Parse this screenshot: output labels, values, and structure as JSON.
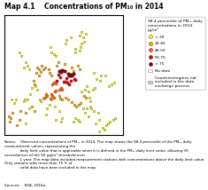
{
  "chart_data": {
    "type": "scatter",
    "title": "Map 4.1    Concentrations of PM₁₀ in 2014",
    "xlim": [
      -11,
      44
    ],
    "ylim": [
      34,
      66
    ],
    "tick_labels": false,
    "legend": "upper right",
    "legend_title": "98.4 percentile of PM₁₀ daily\nconcentrations in 2014",
    "legend_subtitle": "μg/m³",
    "series": [
      {
        "name": "< 20",
        "color": "#f5f500",
        "size": 2.5,
        "x": [
          0.0,
          -1.0,
          -2.0,
          -3.0,
          -4.0,
          0.5,
          10.5,
          11.0,
          12.0,
          13.0,
          18.0,
          17.5,
          20.0,
          24.0,
          25.0,
          25.5,
          27.0,
          22.0,
          24.5,
          25.0,
          22.0,
          24.0,
          26.0,
          28.5,
          29.0,
          30.0,
          31.0,
          28.0,
          27.5,
          25.0,
          26.5,
          30.5,
          32.0,
          33.5,
          34.0,
          36.0,
          37.5,
          39.0,
          40.0,
          33.0,
          34.5,
          35.5,
          36.5,
          37.0,
          38.0,
          39.5,
          40.5,
          27.5,
          29.0,
          30.5,
          32.5,
          31.5,
          33.0,
          29.5,
          28.0,
          26.5,
          25.5,
          23.0,
          21.0,
          22.0,
          24.0,
          5.5,
          6.0,
          7.0,
          8.0,
          4.5,
          3.5,
          2.0,
          1.0,
          0.0,
          -1.5,
          -2.0,
          -1.0,
          0.5,
          -5.5,
          -6.5,
          -7.5,
          14.5,
          15.5,
          16.0,
          13.0,
          12.5,
          11.0,
          10.0,
          9.0,
          8.5
        ],
        "y": [
          52.5,
          53.5,
          52.0,
          55.0,
          56.0,
          51.5,
          57.5,
          56.0,
          55.5,
          55.0,
          59.5,
          58.5,
          60.0,
          60.5,
          61.5,
          60.0,
          61.0,
          57.0,
          57.5,
          58.5,
          56.0,
          56.5,
          59.0,
          44.0,
          43.0,
          46.0,
          46.5,
          45.5,
          47.0,
          45.5,
          46.0,
          50.5,
          49.0,
          48.5,
          50.0,
          50.0,
          47.0,
          47.5,
          48.0,
          35.0,
          36.0,
          35.5,
          36.5,
          37.0,
          37.5,
          38.0,
          38.5,
          41.0,
          41.5,
          40.5,
          40.0,
          37.0,
          38.0,
          41.0,
          39.0,
          40.0,
          41.0,
          38.0,
          37.5,
          38.5,
          37.5,
          43.5,
          43.0,
          43.8,
          44.0,
          46.0,
          47.0,
          46.5,
          45.0,
          43.5,
          43.5,
          43.0,
          37.0,
          41.0,
          43.5,
          42.5,
          43.5,
          40.5,
          37.5,
          38.5,
          38.0,
          41.5,
          43.5,
          42.0,
          41.0,
          39.5
        ]
      },
      {
        "name": "20-40",
        "color": "#ffa500",
        "size": 3,
        "x": [
          2.5,
          3.0,
          4.0,
          5.0,
          6.0,
          5.0,
          4.5,
          6.5,
          7.0,
          8.0,
          9.5,
          10.0,
          11.0,
          13.5,
          14.0,
          17.0,
          20.5,
          21.0,
          23.0,
          24.0,
          26.0,
          27.0,
          23.5,
          24.5,
          22.5,
          21.5,
          20.5,
          18.5,
          17.5,
          16.0,
          14.5,
          15.0,
          2.0,
          3.0,
          -1.0,
          -3.5,
          -5.0,
          -8.0,
          -8.5,
          -9.0,
          -7.0,
          -4.0
        ],
        "y": [
          48.5,
          47.5,
          50.5,
          50.0,
          50.8,
          51.5,
          52.0,
          52.5,
          51.5,
          52.0,
          51.5,
          50.5,
          50.0,
          52.5,
          53.5,
          53.0,
          52.0,
          51.0,
          52.5,
          51.5,
          44.5,
          44.0,
          42.0,
          42.5,
          41.5,
          42.0,
          42.8,
          43.5,
          44.0,
          43.5,
          44.5,
          43.8,
          41.5,
          40.5,
          40.0,
          40.5,
          36.5,
          38.5,
          37.5,
          39.0,
          40.0,
          38.0
        ]
      },
      {
        "name": "40-50",
        "color": "#ff6600",
        "size": 3.5,
        "x": [
          12.0,
          11.5,
          13.0,
          16.0,
          15.5,
          14.5,
          12.5,
          13.0,
          11.0,
          11.5,
          12.0,
          10.5,
          9.0,
          8.5,
          7.5
        ],
        "y": [
          48.0,
          47.5,
          47.8,
          46.0,
          46.5,
          46.2,
          45.5,
          45.8,
          45.0,
          44.5,
          44.0,
          43.8,
          44.5,
          45.0,
          44.0
        ]
      },
      {
        "name": "50-75",
        "color": "#e60000",
        "size": 4,
        "x": [
          17.5,
          18.2,
          14.0,
          15.0,
          13.5,
          16.5,
          17.8,
          19.0,
          20.0,
          21.5,
          22.0
        ],
        "y": [
          48.2,
          48.0,
          50.1,
          49.5,
          48.5,
          48.2,
          49.2,
          47.5,
          48.5,
          49.0,
          48.8
        ]
      },
      {
        "name": "> 75",
        "color": "#800000",
        "size": 5,
        "x": [
          14.5,
          15.2,
          16.0,
          17.0,
          18.5,
          19.0,
          19.5,
          20.0,
          20.5,
          21.0
        ],
        "y": [
          51.1,
          50.8,
          51.3,
          51.1,
          50.3,
          50.0,
          49.8,
          50.1,
          50.0,
          50.3
        ]
      }
    ],
    "legend_patches": [
      {
        "name": "No data",
        "color": "#ffffff"
      },
      {
        "name": "Countries/regions not\nincluded in the data\nexchange process",
        "color": "#d0ccbc"
      }
    ],
    "notes": "Notes:    Observed concentrations of PM₁₀ in 2014. The map shows the 98.4 percentile of the PM₁₀ daily measurement values, representing the\n              daily limit value that is applicable when it is defined in the PM₁₀ daily limit value, allowing 35 exceedances of the 50 μg/m³ threshold over\n              1 year. The map data included measurement stations with concentrations above the daily limit value. Only stations with more than 75 % of\n              valid data have been included in the map.",
    "source": "Sources:    EEA, 2016a."
  }
}
